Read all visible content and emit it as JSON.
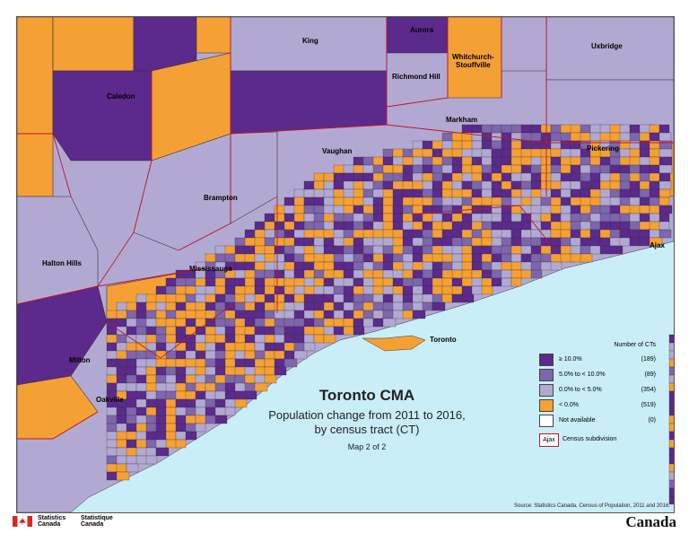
{
  "colors": {
    "water": "#c9eef8",
    "ge10": "#5b2a8c",
    "5to10": "#7d66ad",
    "0to5": "#b2a9d3",
    "lt0": "#f5a035",
    "na": "#ffffff",
    "csd_boundary": "#c0152a",
    "ct_boundary": "#333333"
  },
  "title": {
    "main": "Toronto CMA",
    "subtitle": "Population change from 2011 to 2016,\nby census tract (CT)",
    "map_number": "Map 2 of 2"
  },
  "legend": {
    "header": "Number of CTs",
    "items": [
      {
        "label": "≥ 10.0%",
        "count": "(189)",
        "color_key": "ge10"
      },
      {
        "label": "5.0% to < 10.0%",
        "count": "(89)",
        "color_key": "5to10"
      },
      {
        "label": "0.0% to < 5.0%",
        "count": "(354)",
        "color_key": "0to5"
      },
      {
        "label": "< 0.0%",
        "count": "(519)",
        "color_key": "lt0"
      },
      {
        "label": "Not available",
        "count": "(0)",
        "color_key": "na"
      }
    ],
    "csd_sample": "Ajax",
    "csd_label": "Census subdivision"
  },
  "places": {
    "king": "King",
    "aurora": "Aurora",
    "whitchurch": "Whitchurch-\nStouffville",
    "uxbridge": "Uxbridge",
    "caledon": "Caledon",
    "richmond_hill": "Richmond Hill",
    "markham": "Markham",
    "pickering": "Pickering",
    "vaughan": "Vaughan",
    "brampton": "Brampton",
    "ajax": "Ajax",
    "halton_hills": "Halton Hills",
    "mississauga": "Mississauga",
    "toronto": "Toronto",
    "milton": "Milton",
    "oakville": "Oakville"
  },
  "source": "Source: Statistics Canada, Census of Population, 2011 and 2016.",
  "footer": {
    "agency_en": "Statistics\nCanada",
    "agency_fr": "Statistique\nCanada",
    "wordmark": "Canada"
  }
}
